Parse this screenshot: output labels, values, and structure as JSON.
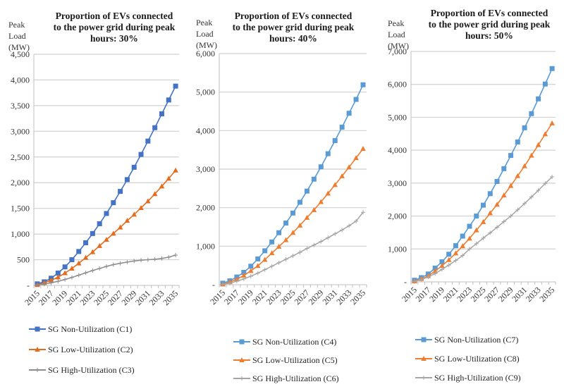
{
  "chart_data": [
    {
      "type": "line",
      "title": "Proportion of EVs connected to the power grid during peak hours: 30%",
      "title_lines": [
        "Proportion of EVs connected",
        "to the power grid during peak",
        "hours: 30%"
      ],
      "ylabel_lines": [
        "Peak",
        "Load",
        "(MW)"
      ],
      "xlabel": "",
      "ylim": [
        0,
        4500
      ],
      "yticks": [
        0,
        500,
        1000,
        1500,
        2000,
        2500,
        3000,
        3500,
        4000,
        4500
      ],
      "ytick_labels": [
        "-",
        "500",
        "1,000",
        "1,500",
        "2,000",
        "2,500",
        "3,000",
        "3,500",
        "4,000",
        "4,500"
      ],
      "x": [
        2015,
        2016,
        2017,
        2018,
        2019,
        2020,
        2021,
        2022,
        2023,
        2024,
        2025,
        2026,
        2027,
        2028,
        2029,
        2030,
        2031,
        2032,
        2033,
        2034,
        2035
      ],
      "xtick_labels": [
        "2015",
        "2017",
        "2019",
        "2021",
        "2023",
        "2025",
        "2027",
        "2029",
        "2031",
        "2033",
        "2035"
      ],
      "grid": true,
      "legend_position": "bottom",
      "series": [
        {
          "name": "SG Non-Utilization (C1)",
          "marker": "square",
          "color": "#4472c4",
          "values": [
            30,
            70,
            140,
            240,
            360,
            500,
            660,
            830,
            1010,
            1200,
            1400,
            1610,
            1830,
            2060,
            2300,
            2550,
            2810,
            3070,
            3340,
            3610,
            3880
          ]
        },
        {
          "name": "SG Low-Utilization (C2)",
          "marker": "triangle",
          "color": "#e46c1f",
          "values": [
            10,
            50,
            100,
            160,
            240,
            330,
            430,
            540,
            650,
            770,
            890,
            1010,
            1130,
            1260,
            1380,
            1510,
            1640,
            1780,
            1930,
            2080,
            2240
          ]
        },
        {
          "name": "SG High-Utilization (C3)",
          "marker": "plus",
          "color": "#8c8c8c",
          "values": [
            10,
            25,
            50,
            80,
            115,
            155,
            200,
            245,
            290,
            330,
            370,
            405,
            430,
            455,
            475,
            490,
            500,
            510,
            525,
            550,
            590
          ]
        }
      ]
    },
    {
      "type": "line",
      "title": "Proportion of EVs connected to the power grid during peak hours: 40%",
      "title_lines": [
        "Proportion of EVs connected",
        "to the power grid during peak",
        "hours: 40%"
      ],
      "ylabel_lines": [
        "Peak",
        "Load",
        "(MW)"
      ],
      "xlabel": "",
      "ylim": [
        0,
        6000
      ],
      "yticks": [
        0,
        1000,
        2000,
        3000,
        4000,
        5000,
        6000
      ],
      "ytick_labels": [
        "-",
        "1,000",
        "2,000",
        "3,000",
        "4,000",
        "5,000",
        "6,000"
      ],
      "x": [
        2015,
        2016,
        2017,
        2018,
        2019,
        2020,
        2021,
        2022,
        2023,
        2024,
        2025,
        2026,
        2027,
        2028,
        2029,
        2030,
        2031,
        2032,
        2033,
        2034,
        2035
      ],
      "xtick_labels": [
        "2015",
        "2017",
        "2019",
        "2021",
        "2023",
        "2025",
        "2027",
        "2029",
        "2031",
        "2033",
        "2035"
      ],
      "grid": true,
      "legend_position": "bottom",
      "series": [
        {
          "name": "SG Non-Utilization (C4)",
          "marker": "square",
          "color": "#5b9bd5",
          "values": [
            40,
            100,
            200,
            320,
            480,
            670,
            880,
            1110,
            1350,
            1600,
            1860,
            2140,
            2430,
            2740,
            3060,
            3400,
            3740,
            4090,
            4450,
            4810,
            5190
          ]
        },
        {
          "name": "SG Low-Utilization (C5)",
          "marker": "triangle",
          "color": "#ed7d31",
          "values": [
            10,
            70,
            140,
            240,
            360,
            490,
            650,
            820,
            990,
            1160,
            1350,
            1540,
            1740,
            1940,
            2150,
            2370,
            2590,
            2820,
            3050,
            3290,
            3530
          ]
        },
        {
          "name": "SG High-Utilization (C6)",
          "marker": "plus",
          "color": "#a5a5a5",
          "values": [
            10,
            40,
            90,
            150,
            220,
            300,
            390,
            480,
            570,
            660,
            750,
            840,
            940,
            1030,
            1120,
            1220,
            1320,
            1420,
            1530,
            1650,
            1880
          ]
        }
      ]
    },
    {
      "type": "line",
      "title": "Proportion of EVs connected to the power grid during peak hours: 50%",
      "title_lines": [
        "Proportion of EVs connected",
        "to the power grid during peak",
        "hours: 50%"
      ],
      "ylabel_lines": [
        "Peak",
        "Load",
        "(MW)"
      ],
      "xlabel": "",
      "ylim": [
        0,
        7000
      ],
      "yticks": [
        0,
        1000,
        2000,
        3000,
        4000,
        5000,
        6000,
        7000
      ],
      "ytick_labels": [
        "-",
        "1,000",
        "2,000",
        "3,000",
        "4,000",
        "5,000",
        "6,000",
        "7,000"
      ],
      "x": [
        2015,
        2016,
        2017,
        2018,
        2019,
        2020,
        2021,
        2022,
        2023,
        2024,
        2025,
        2026,
        2027,
        2028,
        2029,
        2030,
        2031,
        2032,
        2033,
        2034,
        2035
      ],
      "xtick_labels": [
        "2015",
        "2017",
        "2019",
        "2021",
        "2023",
        "2025",
        "2027",
        "2029",
        "2031",
        "2033",
        "2035"
      ],
      "grid": true,
      "legend_position": "bottom",
      "series": [
        {
          "name": "SG Non-Utilization (C7)",
          "marker": "square",
          "color": "#5b9bd5",
          "values": [
            50,
            130,
            240,
            420,
            610,
            840,
            1100,
            1390,
            1690,
            2000,
            2330,
            2680,
            3050,
            3440,
            3840,
            4250,
            4680,
            5110,
            5560,
            6010,
            6480
          ]
        },
        {
          "name": "SG Low-Utilization (C8)",
          "marker": "triangle",
          "color": "#ed7d31",
          "values": [
            20,
            90,
            180,
            330,
            490,
            670,
            870,
            1090,
            1320,
            1570,
            1820,
            2090,
            2350,
            2630,
            2920,
            3220,
            3520,
            3840,
            4160,
            4490,
            4820
          ]
        },
        {
          "name": "SG High-Utilization (C9)",
          "marker": "plus",
          "color": "#a5a5a5",
          "values": [
            10,
            70,
            150,
            250,
            380,
            510,
            650,
            800,
            1000,
            1160,
            1330,
            1490,
            1660,
            1830,
            2000,
            2190,
            2380,
            2580,
            2780,
            2990,
            3190
          ]
        }
      ]
    }
  ]
}
